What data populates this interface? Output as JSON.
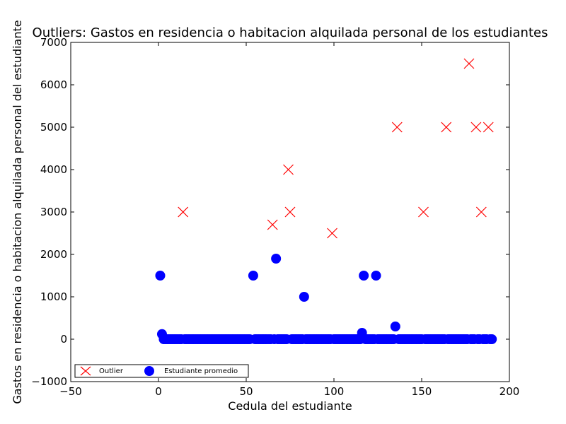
{
  "chart_data": {
    "type": "scatter",
    "title": "Outliers: Gastos en residencia o habitacion alquilada personal de los estudiantes",
    "xlabel": "Cedula del estudiante",
    "ylabel": "Gastos en residencia o habitacion alquilada personal del estudiante",
    "xlim": [
      -50,
      200
    ],
    "ylim": [
      -1000,
      7000
    ],
    "xticks": [
      -50,
      0,
      50,
      100,
      150,
      200
    ],
    "yticks": [
      -1000,
      0,
      1000,
      2000,
      3000,
      4000,
      5000,
      6000,
      7000
    ],
    "grid": false,
    "legend_position": "lower-left",
    "series": [
      {
        "name": "Outlier",
        "marker": "x",
        "color": "#ff0000",
        "points": [
          [
            14,
            3000
          ],
          [
            65,
            2700
          ],
          [
            74,
            4000
          ],
          [
            75,
            3000
          ],
          [
            99,
            2500
          ],
          [
            136,
            5000
          ],
          [
            151,
            3000
          ],
          [
            164,
            5000
          ],
          [
            177,
            6500
          ],
          [
            181,
            5000
          ],
          [
            184,
            3000
          ],
          [
            188,
            5000
          ]
        ]
      },
      {
        "name": "Estudiante promedio",
        "marker": "circle",
        "color": "#0000ff",
        "points": [
          [
            1,
            1500
          ],
          [
            2,
            120
          ],
          [
            3,
            0
          ],
          [
            4,
            0
          ],
          [
            5,
            0
          ],
          [
            6,
            0
          ],
          [
            7,
            0
          ],
          [
            8,
            0
          ],
          [
            9,
            0
          ],
          [
            10,
            0
          ],
          [
            11,
            0
          ],
          [
            12,
            0
          ],
          [
            13,
            0
          ],
          [
            15,
            0
          ],
          [
            16,
            0
          ],
          [
            17,
            0
          ],
          [
            18,
            0
          ],
          [
            19,
            0
          ],
          [
            20,
            0
          ],
          [
            21,
            0
          ],
          [
            22,
            0
          ],
          [
            23,
            0
          ],
          [
            24,
            0
          ],
          [
            25,
            0
          ],
          [
            26,
            0
          ],
          [
            27,
            0
          ],
          [
            28,
            0
          ],
          [
            29,
            0
          ],
          [
            30,
            0
          ],
          [
            31,
            0
          ],
          [
            32,
            0
          ],
          [
            33,
            0
          ],
          [
            34,
            0
          ],
          [
            35,
            0
          ],
          [
            36,
            0
          ],
          [
            37,
            0
          ],
          [
            38,
            0
          ],
          [
            39,
            0
          ],
          [
            40,
            0
          ],
          [
            41,
            0
          ],
          [
            42,
            0
          ],
          [
            43,
            0
          ],
          [
            44,
            0
          ],
          [
            45,
            0
          ],
          [
            46,
            0
          ],
          [
            47,
            0
          ],
          [
            48,
            0
          ],
          [
            49,
            0
          ],
          [
            50,
            0
          ],
          [
            51,
            0
          ],
          [
            52,
            0
          ],
          [
            54,
            1500
          ],
          [
            55,
            0
          ],
          [
            56,
            0
          ],
          [
            57,
            0
          ],
          [
            58,
            0
          ],
          [
            59,
            0
          ],
          [
            60,
            0
          ],
          [
            61,
            0
          ],
          [
            62,
            0
          ],
          [
            63,
            0
          ],
          [
            64,
            0
          ],
          [
            66,
            0
          ],
          [
            67,
            1900
          ],
          [
            68,
            0
          ],
          [
            69,
            0
          ],
          [
            70,
            0
          ],
          [
            71,
            0
          ],
          [
            72,
            0
          ],
          [
            73,
            0
          ],
          [
            76,
            0
          ],
          [
            77,
            0
          ],
          [
            78,
            0
          ],
          [
            79,
            0
          ],
          [
            80,
            0
          ],
          [
            81,
            0
          ],
          [
            82,
            0
          ],
          [
            83,
            1000
          ],
          [
            84,
            0
          ],
          [
            85,
            0
          ],
          [
            86,
            0
          ],
          [
            87,
            0
          ],
          [
            88,
            0
          ],
          [
            89,
            0
          ],
          [
            90,
            0
          ],
          [
            91,
            0
          ],
          [
            92,
            0
          ],
          [
            93,
            0
          ],
          [
            94,
            0
          ],
          [
            95,
            0
          ],
          [
            96,
            0
          ],
          [
            97,
            0
          ],
          [
            98,
            0
          ],
          [
            100,
            0
          ],
          [
            101,
            0
          ],
          [
            102,
            0
          ],
          [
            103,
            0
          ],
          [
            104,
            0
          ],
          [
            105,
            0
          ],
          [
            106,
            0
          ],
          [
            107,
            0
          ],
          [
            108,
            0
          ],
          [
            109,
            0
          ],
          [
            110,
            0
          ],
          [
            111,
            0
          ],
          [
            112,
            0
          ],
          [
            113,
            0
          ],
          [
            114,
            0
          ],
          [
            115,
            0
          ],
          [
            116,
            150
          ],
          [
            117,
            1500
          ],
          [
            118,
            0
          ],
          [
            119,
            0
          ],
          [
            120,
            0
          ],
          [
            121,
            0
          ],
          [
            122,
            0
          ],
          [
            123,
            0
          ],
          [
            124,
            1500
          ],
          [
            125,
            0
          ],
          [
            126,
            0
          ],
          [
            127,
            0
          ],
          [
            128,
            0
          ],
          [
            129,
            0
          ],
          [
            130,
            0
          ],
          [
            131,
            0
          ],
          [
            132,
            0
          ],
          [
            133,
            0
          ],
          [
            134,
            0
          ],
          [
            135,
            300
          ],
          [
            137,
            0
          ],
          [
            138,
            0
          ],
          [
            139,
            0
          ],
          [
            140,
            0
          ],
          [
            141,
            0
          ],
          [
            142,
            0
          ],
          [
            143,
            0
          ],
          [
            144,
            0
          ],
          [
            145,
            0
          ],
          [
            146,
            0
          ],
          [
            147,
            0
          ],
          [
            148,
            0
          ],
          [
            149,
            0
          ],
          [
            150,
            0
          ],
          [
            152,
            0
          ],
          [
            153,
            0
          ],
          [
            154,
            0
          ],
          [
            155,
            0
          ],
          [
            156,
            0
          ],
          [
            157,
            0
          ],
          [
            158,
            0
          ],
          [
            159,
            0
          ],
          [
            160,
            0
          ],
          [
            161,
            0
          ],
          [
            162,
            0
          ],
          [
            163,
            0
          ],
          [
            165,
            0
          ],
          [
            166,
            0
          ],
          [
            167,
            0
          ],
          [
            168,
            0
          ],
          [
            169,
            0
          ],
          [
            170,
            0
          ],
          [
            171,
            0
          ],
          [
            172,
            0
          ],
          [
            173,
            0
          ],
          [
            174,
            0
          ],
          [
            175,
            0
          ],
          [
            176,
            0
          ],
          [
            178,
            0
          ],
          [
            179,
            0
          ],
          [
            180,
            0
          ],
          [
            182,
            0
          ],
          [
            183,
            0
          ],
          [
            185,
            0
          ],
          [
            186,
            0
          ],
          [
            187,
            0
          ],
          [
            189,
            0
          ],
          [
            190,
            0
          ]
        ]
      }
    ]
  }
}
